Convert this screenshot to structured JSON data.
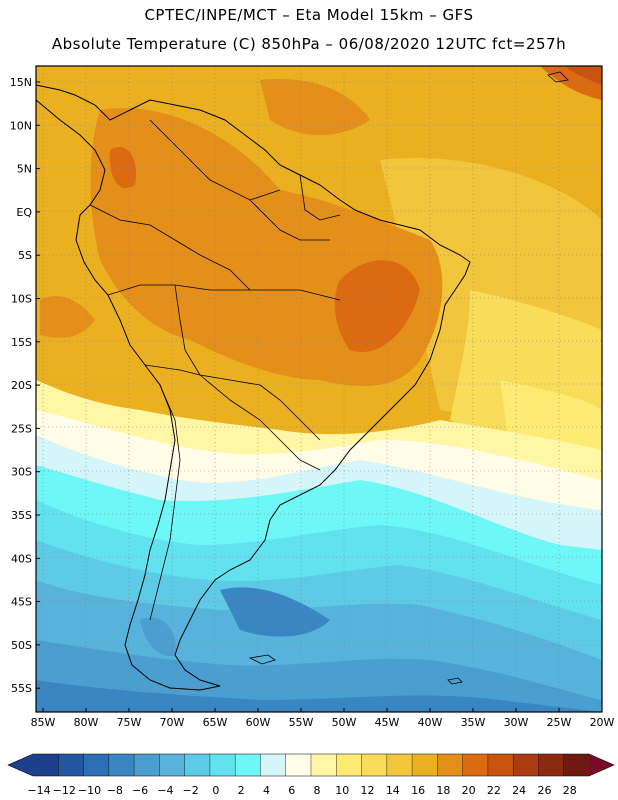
{
  "header": {
    "line1": "CPTEC/INPE/MCT –  Eta Model 15km – GFS",
    "line2": "Absolute Temperature (C) 850hPa – 06/08/2020 12UTC fct=257h"
  },
  "map": {
    "lat_labels": [
      "15N",
      "10N",
      "5N",
      "EQ",
      "5S",
      "10S",
      "15S",
      "20S",
      "25S",
      "30S",
      "35S",
      "40S",
      "45S",
      "50S",
      "55S"
    ],
    "lon_labels": [
      "85W",
      "80W",
      "75W",
      "70W",
      "65W",
      "60W",
      "55W",
      "50W",
      "45W",
      "40W",
      "35W",
      "30W",
      "25W",
      "20W"
    ]
  },
  "colorbar": {
    "labels": [
      "-14",
      "-12",
      "-10",
      "-8",
      "-6",
      "-4",
      "-2",
      "0",
      "2",
      "4",
      "6",
      "8",
      "10",
      "12",
      "14",
      "16",
      "18",
      "20",
      "22",
      "24",
      "26",
      "28"
    ],
    "colors": [
      "#1d3f8c",
      "#2457a2",
      "#2d6fb4",
      "#3a86c3",
      "#4a9fd0",
      "#57b3dc",
      "#5ecbe6",
      "#62e2ef",
      "#6ef7f7",
      "#d4f6fa",
      "#fffde8",
      "#fff7a6",
      "#fdeb74",
      "#f8dc5a",
      "#f1c53c",
      "#eab020",
      "#e38f19",
      "#dc6a10",
      "#c95410",
      "#ad3d10",
      "#8c2a10",
      "#6e1a10"
    ]
  }
}
